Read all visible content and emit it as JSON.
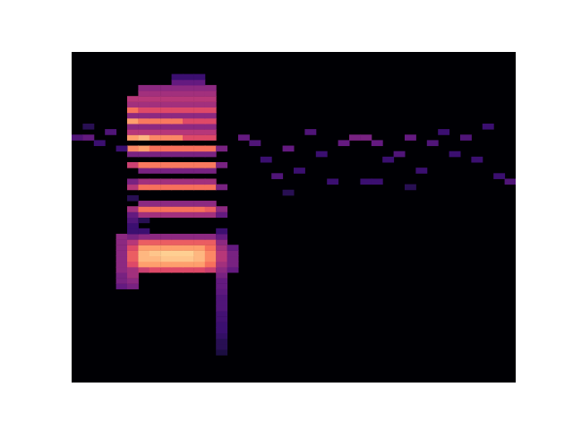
{
  "chart_data": {
    "type": "heatmap",
    "xlim": [
      0,
      40
    ],
    "ylim": [
      0,
      60
    ],
    "zlim": [
      0,
      1
    ],
    "tick_labels": false,
    "cells": [
      [
        13,
        5,
        0.12
      ],
      [
        13,
        6,
        0.15
      ],
      [
        13,
        7,
        0.15
      ],
      [
        13,
        8,
        0.18
      ],
      [
        13,
        9,
        0.2
      ],
      [
        13,
        10,
        0.2
      ],
      [
        13,
        11,
        0.22
      ],
      [
        13,
        12,
        0.22
      ],
      [
        13,
        13,
        0.25
      ],
      [
        13,
        14,
        0.25
      ],
      [
        13,
        15,
        0.25
      ],
      [
        13,
        16,
        0.28
      ],
      [
        4,
        17,
        0.3
      ],
      [
        5,
        17,
        0.35
      ],
      [
        13,
        17,
        0.3
      ],
      [
        4,
        18,
        0.35
      ],
      [
        5,
        18,
        0.4
      ],
      [
        13,
        18,
        0.3
      ],
      [
        4,
        19,
        0.35
      ],
      [
        5,
        19,
        0.45
      ],
      [
        13,
        19,
        0.35
      ],
      [
        4,
        20,
        0.4
      ],
      [
        5,
        20,
        0.45
      ],
      [
        6,
        20,
        0.55
      ],
      [
        7,
        20,
        0.6
      ],
      [
        8,
        20,
        0.6
      ],
      [
        9,
        20,
        0.6
      ],
      [
        10,
        20,
        0.6
      ],
      [
        11,
        20,
        0.6
      ],
      [
        12,
        20,
        0.55
      ],
      [
        13,
        20,
        0.4
      ],
      [
        14,
        20,
        0.3
      ],
      [
        4,
        21,
        0.4
      ],
      [
        5,
        21,
        0.6
      ],
      [
        6,
        21,
        0.8
      ],
      [
        7,
        21,
        0.8
      ],
      [
        8,
        21,
        0.8
      ],
      [
        9,
        21,
        0.8
      ],
      [
        10,
        21,
        0.8
      ],
      [
        11,
        21,
        0.8
      ],
      [
        12,
        21,
        0.7
      ],
      [
        13,
        21,
        0.45
      ],
      [
        14,
        21,
        0.35
      ],
      [
        4,
        22,
        0.4
      ],
      [
        5,
        22,
        0.65
      ],
      [
        6,
        22,
        0.85
      ],
      [
        7,
        22,
        0.85
      ],
      [
        8,
        22,
        0.88
      ],
      [
        9,
        22,
        0.88
      ],
      [
        10,
        22,
        0.88
      ],
      [
        11,
        22,
        0.85
      ],
      [
        12,
        22,
        0.75
      ],
      [
        13,
        22,
        0.5
      ],
      [
        14,
        22,
        0.35
      ],
      [
        4,
        23,
        0.4
      ],
      [
        5,
        23,
        0.65
      ],
      [
        6,
        23,
        0.85
      ],
      [
        7,
        23,
        0.88
      ],
      [
        8,
        23,
        0.9
      ],
      [
        9,
        23,
        0.9
      ],
      [
        10,
        23,
        0.9
      ],
      [
        11,
        23,
        0.85
      ],
      [
        12,
        23,
        0.75
      ],
      [
        13,
        23,
        0.5
      ],
      [
        14,
        23,
        0.35
      ],
      [
        4,
        24,
        0.4
      ],
      [
        5,
        24,
        0.6
      ],
      [
        6,
        24,
        0.8
      ],
      [
        7,
        24,
        0.8
      ],
      [
        8,
        24,
        0.8
      ],
      [
        9,
        24,
        0.8
      ],
      [
        10,
        24,
        0.8
      ],
      [
        11,
        24,
        0.8
      ],
      [
        12,
        24,
        0.7
      ],
      [
        13,
        24,
        0.45
      ],
      [
        14,
        24,
        0.3
      ],
      [
        4,
        25,
        0.4
      ],
      [
        5,
        25,
        0.5
      ],
      [
        6,
        25,
        0.65
      ],
      [
        7,
        25,
        0.65
      ],
      [
        8,
        25,
        0.65
      ],
      [
        9,
        25,
        0.65
      ],
      [
        10,
        25,
        0.65
      ],
      [
        11,
        25,
        0.65
      ],
      [
        12,
        25,
        0.65
      ],
      [
        13,
        25,
        0.4
      ],
      [
        4,
        26,
        0.4
      ],
      [
        5,
        26,
        0.35
      ],
      [
        6,
        26,
        0.4
      ],
      [
        7,
        26,
        0.4
      ],
      [
        8,
        26,
        0.4
      ],
      [
        9,
        26,
        0.4
      ],
      [
        10,
        26,
        0.4
      ],
      [
        11,
        26,
        0.4
      ],
      [
        12,
        26,
        0.4
      ],
      [
        13,
        26,
        0.3
      ],
      [
        5,
        27,
        0.2
      ],
      [
        6,
        27,
        0.2
      ],
      [
        13,
        27,
        0.2
      ],
      [
        5,
        28,
        0.2
      ],
      [
        5,
        29,
        0.25
      ],
      [
        6,
        29,
        0.15
      ],
      [
        5,
        30,
        0.3
      ],
      [
        6,
        30,
        0.45
      ],
      [
        7,
        30,
        0.45
      ],
      [
        8,
        30,
        0.45
      ],
      [
        9,
        30,
        0.45
      ],
      [
        10,
        30,
        0.45
      ],
      [
        11,
        30,
        0.45
      ],
      [
        12,
        30,
        0.45
      ],
      [
        13,
        30,
        0.3
      ],
      [
        5,
        31,
        0.45
      ],
      [
        6,
        31,
        0.7
      ],
      [
        7,
        31,
        0.7
      ],
      [
        8,
        31,
        0.7
      ],
      [
        9,
        31,
        0.7
      ],
      [
        10,
        31,
        0.7
      ],
      [
        11,
        31,
        0.7
      ],
      [
        12,
        31,
        0.65
      ],
      [
        13,
        31,
        0.4
      ],
      [
        6,
        32,
        0.4
      ],
      [
        7,
        32,
        0.4
      ],
      [
        8,
        32,
        0.4
      ],
      [
        9,
        32,
        0.4
      ],
      [
        10,
        32,
        0.4
      ],
      [
        11,
        32,
        0.4
      ],
      [
        12,
        32,
        0.4
      ],
      [
        5,
        33,
        0.15
      ],
      [
        5,
        35,
        0.5
      ],
      [
        6,
        35,
        0.7
      ],
      [
        7,
        35,
        0.7
      ],
      [
        8,
        35,
        0.7
      ],
      [
        9,
        35,
        0.7
      ],
      [
        10,
        35,
        0.7
      ],
      [
        11,
        35,
        0.7
      ],
      [
        12,
        35,
        0.7
      ],
      [
        13,
        35,
        0.35
      ],
      [
        5,
        36,
        0.35
      ],
      [
        6,
        36,
        0.45
      ],
      [
        7,
        36,
        0.45
      ],
      [
        8,
        36,
        0.45
      ],
      [
        9,
        36,
        0.45
      ],
      [
        10,
        36,
        0.45
      ],
      [
        11,
        36,
        0.45
      ],
      [
        12,
        36,
        0.45
      ],
      [
        6,
        38,
        0.35
      ],
      [
        7,
        38,
        0.35
      ],
      [
        8,
        38,
        0.35
      ],
      [
        9,
        38,
        0.35
      ],
      [
        10,
        38,
        0.35
      ],
      [
        11,
        38,
        0.35
      ],
      [
        12,
        38,
        0.35
      ],
      [
        5,
        39,
        0.55
      ],
      [
        6,
        39,
        0.72
      ],
      [
        7,
        39,
        0.72
      ],
      [
        8,
        39,
        0.72
      ],
      [
        9,
        39,
        0.72
      ],
      [
        10,
        39,
        0.72
      ],
      [
        11,
        39,
        0.72
      ],
      [
        12,
        39,
        0.72
      ],
      [
        13,
        39,
        0.35
      ],
      [
        5,
        41,
        0.35
      ],
      [
        6,
        41,
        0.35
      ],
      [
        7,
        41,
        0.35
      ],
      [
        8,
        41,
        0.35
      ],
      [
        9,
        41,
        0.35
      ],
      [
        10,
        41,
        0.35
      ],
      [
        11,
        41,
        0.35
      ],
      [
        12,
        41,
        0.35
      ],
      [
        5,
        42,
        0.75
      ],
      [
        6,
        42,
        0.8
      ],
      [
        7,
        42,
        0.7
      ],
      [
        8,
        42,
        0.7
      ],
      [
        9,
        42,
        0.7
      ],
      [
        10,
        42,
        0.7
      ],
      [
        11,
        42,
        0.7
      ],
      [
        12,
        42,
        0.7
      ],
      [
        13,
        42,
        0.35
      ],
      [
        5,
        44,
        0.8
      ],
      [
        6,
        44,
        0.85
      ],
      [
        7,
        44,
        0.75
      ],
      [
        8,
        44,
        0.75
      ],
      [
        9,
        44,
        0.75
      ],
      [
        10,
        44,
        0.6
      ],
      [
        11,
        44,
        0.6
      ],
      [
        12,
        44,
        0.6
      ],
      [
        5,
        45,
        0.5
      ],
      [
        6,
        45,
        0.5
      ],
      [
        7,
        45,
        0.5
      ],
      [
        8,
        45,
        0.5
      ],
      [
        9,
        45,
        0.5
      ],
      [
        10,
        45,
        0.5
      ],
      [
        11,
        45,
        0.5
      ],
      [
        12,
        45,
        0.5
      ],
      [
        5,
        46,
        0.4
      ],
      [
        6,
        46,
        0.4
      ],
      [
        7,
        46,
        0.4
      ],
      [
        8,
        46,
        0.4
      ],
      [
        9,
        46,
        0.4
      ],
      [
        10,
        46,
        0.4
      ],
      [
        11,
        46,
        0.4
      ],
      [
        12,
        46,
        0.4
      ],
      [
        5,
        47,
        0.8
      ],
      [
        6,
        47,
        0.72
      ],
      [
        7,
        47,
        0.72
      ],
      [
        8,
        47,
        0.72
      ],
      [
        9,
        47,
        0.72
      ],
      [
        10,
        47,
        0.6
      ],
      [
        11,
        47,
        0.6
      ],
      [
        12,
        47,
        0.6
      ],
      [
        5,
        48,
        0.4
      ],
      [
        6,
        48,
        0.4
      ],
      [
        7,
        48,
        0.4
      ],
      [
        8,
        48,
        0.4
      ],
      [
        9,
        48,
        0.4
      ],
      [
        10,
        48,
        0.4
      ],
      [
        11,
        48,
        0.4
      ],
      [
        12,
        48,
        0.4
      ],
      [
        5,
        49,
        0.7
      ],
      [
        6,
        49,
        0.6
      ],
      [
        7,
        49,
        0.6
      ],
      [
        8,
        49,
        0.6
      ],
      [
        9,
        49,
        0.6
      ],
      [
        10,
        49,
        0.6
      ],
      [
        11,
        49,
        0.6
      ],
      [
        12,
        49,
        0.6
      ],
      [
        5,
        50,
        0.45
      ],
      [
        6,
        50,
        0.45
      ],
      [
        7,
        50,
        0.45
      ],
      [
        8,
        50,
        0.45
      ],
      [
        9,
        50,
        0.45
      ],
      [
        10,
        50,
        0.45
      ],
      [
        11,
        50,
        0.45
      ],
      [
        12,
        50,
        0.45
      ],
      [
        5,
        51,
        0.5
      ],
      [
        6,
        51,
        0.5
      ],
      [
        7,
        51,
        0.5
      ],
      [
        8,
        51,
        0.5
      ],
      [
        9,
        51,
        0.5
      ],
      [
        10,
        51,
        0.5
      ],
      [
        11,
        51,
        0.5
      ],
      [
        12,
        51,
        0.5
      ],
      [
        6,
        52,
        0.45
      ],
      [
        7,
        52,
        0.45
      ],
      [
        8,
        52,
        0.45
      ],
      [
        9,
        52,
        0.45
      ],
      [
        10,
        52,
        0.45
      ],
      [
        11,
        52,
        0.45
      ],
      [
        12,
        52,
        0.45
      ],
      [
        6,
        53,
        0.4
      ],
      [
        7,
        53,
        0.4
      ],
      [
        8,
        53,
        0.4
      ],
      [
        9,
        53,
        0.4
      ],
      [
        10,
        53,
        0.4
      ],
      [
        11,
        53,
        0.4
      ],
      [
        12,
        53,
        0.4
      ],
      [
        9,
        54,
        0.3
      ],
      [
        10,
        54,
        0.3
      ],
      [
        11,
        54,
        0.3
      ],
      [
        9,
        55,
        0.2
      ],
      [
        10,
        55,
        0.2
      ],
      [
        11,
        55,
        0.2
      ],
      [
        0,
        44,
        0.25
      ],
      [
        1,
        44,
        0.3
      ],
      [
        2,
        43,
        0.2
      ],
      [
        3,
        45,
        0.25
      ],
      [
        1,
        46,
        0.15
      ],
      [
        4,
        42,
        0.2
      ],
      [
        15,
        44,
        0.3
      ],
      [
        16,
        43,
        0.25
      ],
      [
        17,
        40,
        0.2
      ],
      [
        18,
        37,
        0.25
      ],
      [
        19,
        42,
        0.3
      ],
      [
        20,
        38,
        0.2
      ],
      [
        21,
        45,
        0.25
      ],
      [
        22,
        41,
        0.2
      ],
      [
        23,
        36,
        0.2
      ],
      [
        24,
        43,
        0.3
      ],
      [
        25,
        44,
        0.35
      ],
      [
        26,
        44,
        0.35
      ],
      [
        27,
        43,
        0.3
      ],
      [
        28,
        40,
        0.2
      ],
      [
        29,
        41,
        0.25
      ],
      [
        30,
        44,
        0.3
      ],
      [
        31,
        38,
        0.2
      ],
      [
        32,
        43,
        0.25
      ],
      [
        33,
        45,
        0.2
      ],
      [
        34,
        41,
        0.2
      ],
      [
        35,
        44,
        0.25
      ],
      [
        36,
        40,
        0.2
      ],
      [
        37,
        46,
        0.2
      ],
      [
        38,
        37,
        0.2
      ],
      [
        39,
        36,
        0.25
      ],
      [
        26,
        36,
        0.2
      ],
      [
        27,
        36,
        0.2
      ],
      [
        19,
        34,
        0.15
      ],
      [
        30,
        35,
        0.15
      ]
    ]
  }
}
